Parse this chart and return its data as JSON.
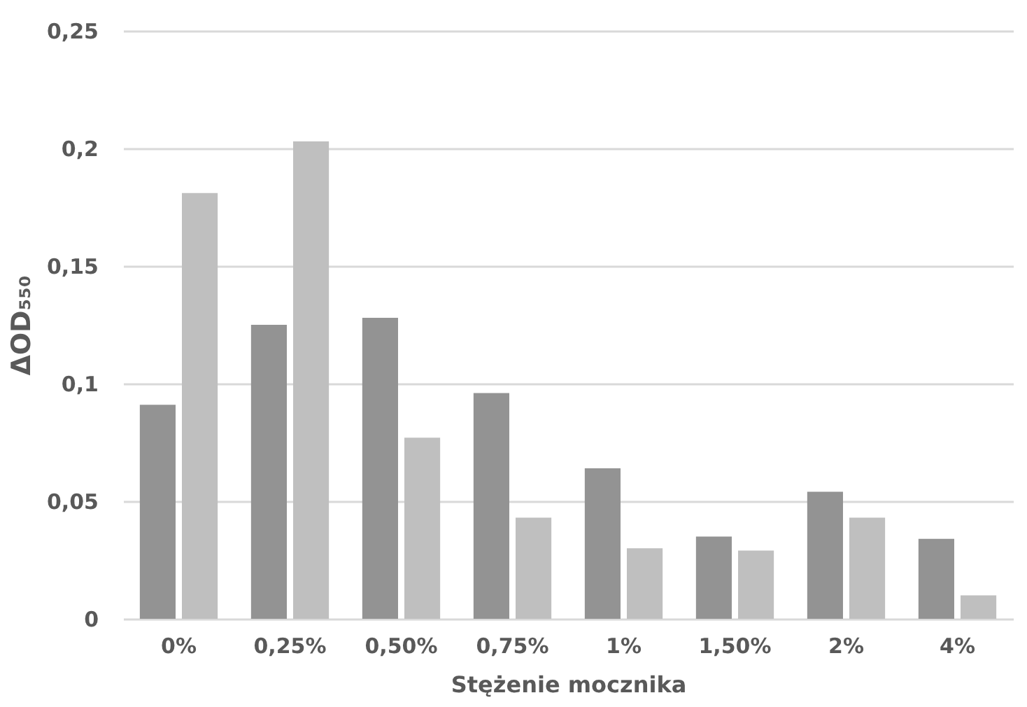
{
  "chart_data": {
    "type": "bar",
    "xlabel": "Stężenie mocznika",
    "ylabel": "ΔOD₅₅₀",
    "categories": [
      "0%",
      "0,25%",
      "0,50%",
      "0,75%",
      "1%",
      "1,50%",
      "2%",
      "4%"
    ],
    "series": [
      {
        "color": "#939393",
        "values": [
          0.091,
          0.125,
          0.128,
          0.096,
          0.064,
          0.035,
          0.054,
          0.034
        ]
      },
      {
        "color": "#bfbfbf",
        "values": [
          0.181,
          0.203,
          0.077,
          0.043,
          0.03,
          0.029,
          0.043,
          0.01
        ]
      }
    ],
    "ylim": [
      0,
      0.25
    ],
    "yticks": [
      0,
      {
        "value": 0.05,
        "label": "0,05"
      },
      {
        "value": 0.1,
        "label": "0,1"
      },
      {
        "value": 0.15,
        "label": "0,15"
      },
      {
        "value": 0.2,
        "label": "0,2"
      },
      {
        "value": 0.25,
        "label": "0,25"
      }
    ],
    "grid": "y",
    "legend": false
  }
}
